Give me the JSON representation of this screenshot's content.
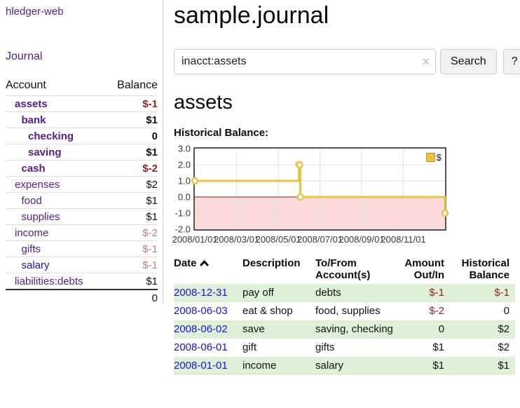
{
  "sidebar": {
    "brand": "hledger-web",
    "journal_link": "Journal",
    "table": {
      "headers": {
        "account": "Account",
        "balance": "Balance"
      },
      "rows": [
        {
          "account": "assets",
          "balance": "$-1",
          "indent": 1,
          "bold": true,
          "balance_style": "neg-strong"
        },
        {
          "account": "bank",
          "balance": "$1",
          "indent": 2,
          "bold": true,
          "balance_style": ""
        },
        {
          "account": "checking",
          "balance": "0",
          "indent": 3,
          "bold": true,
          "balance_style": ""
        },
        {
          "account": "saving",
          "balance": "$1",
          "indent": 3,
          "bold": true,
          "balance_style": ""
        },
        {
          "account": "cash",
          "balance": "$-2",
          "indent": 2,
          "bold": true,
          "balance_style": "neg-strong"
        },
        {
          "account": "expenses",
          "balance": "$2",
          "indent": 1,
          "bold": false,
          "balance_style": ""
        },
        {
          "account": "food",
          "balance": "$1",
          "indent": 2,
          "bold": false,
          "balance_style": ""
        },
        {
          "account": "supplies",
          "balance": "$1",
          "indent": 2,
          "bold": false,
          "balance_style": ""
        },
        {
          "account": "income",
          "balance": "$-2",
          "indent": 1,
          "bold": false,
          "balance_style": "neg-muted"
        },
        {
          "account": "gifts",
          "balance": "$-1",
          "indent": 2,
          "bold": false,
          "balance_style": "neg-muted"
        },
        {
          "account": "salary",
          "balance": "$-1",
          "indent": 2,
          "bold": false,
          "balance_style": "neg-muted",
          "link_style": "blue"
        },
        {
          "account": "liabilities:debts",
          "balance": "$1",
          "indent": 1,
          "bold": false,
          "balance_style": ""
        }
      ],
      "total": "0"
    }
  },
  "header": {
    "title": "sample.journal"
  },
  "search": {
    "value": "inacct:assets",
    "clear_icon": "×",
    "search_button": "Search",
    "help_button": "?"
  },
  "main": {
    "account_heading": "assets",
    "chart_label": "Historical Balance:"
  },
  "chart_data": {
    "type": "line",
    "step": true,
    "title": "Historical Balance:",
    "series": [
      {
        "name": "$",
        "color": "#edc240",
        "points": [
          [
            "2008-01-01",
            1.0
          ],
          [
            "2008-06-01",
            2.0
          ],
          [
            "2008-06-02",
            2.0
          ],
          [
            "2008-06-03",
            0.0
          ],
          [
            "2008-12-31",
            -1.0
          ]
        ]
      }
    ],
    "x_range": [
      "2008-01-01",
      "2008-12-31"
    ],
    "x_ticks": [
      "2008/01/01",
      "2008/03/01",
      "2008/05/01",
      "2008/07/01",
      "2008/09/01",
      "2008/11/01"
    ],
    "y_ticks": [
      3.0,
      2.0,
      1.0,
      0.0,
      -1.0,
      -2.0
    ],
    "ylim": [
      -2.0,
      3.0
    ],
    "grid": true,
    "legend_position": "top-right",
    "negative_region_shaded": true,
    "zero_line_color": "#8b1414",
    "negative_region_color": "#fcdada"
  },
  "register_table": {
    "headers": [
      {
        "label": "Date",
        "sortable": true,
        "sort": "asc",
        "align": "left"
      },
      {
        "label": "Description",
        "align": "left"
      },
      {
        "label": "To/From Account(s)",
        "align": "left"
      },
      {
        "label": "Amount Out/In",
        "align": "right"
      },
      {
        "label": "Historical Balance",
        "align": "right"
      }
    ],
    "rows": [
      {
        "date": "2008-12-31",
        "description": "pay off",
        "accounts": "debts",
        "amount": "$-1",
        "amount_neg": true,
        "balance": "$-1",
        "balance_neg": true,
        "green": true
      },
      {
        "date": "2008-06-03",
        "description": "eat & shop",
        "accounts": "food, supplies",
        "amount": "$-2",
        "amount_neg": true,
        "balance": "0",
        "balance_neg": false,
        "green": false
      },
      {
        "date": "2008-06-02",
        "description": "save",
        "accounts": "saving, checking",
        "amount": "0",
        "amount_neg": false,
        "balance": "$2",
        "balance_neg": false,
        "green": true
      },
      {
        "date": "2008-06-01",
        "description": "gift",
        "accounts": "gifts",
        "amount": "$1",
        "amount_neg": false,
        "balance": "$2",
        "balance_neg": false,
        "green": false
      },
      {
        "date": "2008-01-01",
        "description": "income",
        "accounts": "salary",
        "amount": "$1",
        "amount_neg": false,
        "balance": "$1",
        "balance_neg": false,
        "green": true
      }
    ]
  },
  "colors": {
    "link_purple": "#571c8d",
    "link_blue": "#1414dd",
    "negative_strong": "#952323",
    "negative_muted": "#c17f7f",
    "row_green": "#dff0d8",
    "chart_gold": "#edc240",
    "chart_negative_region": "#fcdada",
    "chart_zero_line": "#8b1414"
  }
}
